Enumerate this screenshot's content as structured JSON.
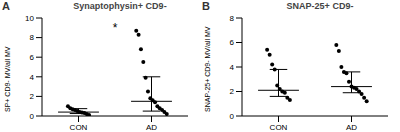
{
  "chart_data": [
    {
      "type": "scatter",
      "panel": "A",
      "title": "Synaptophysin+ CD9-",
      "y_label": "SP+ CD9- MV/all MV",
      "categories": [
        "CON",
        "AD"
      ],
      "values": [
        [
          1.0,
          0.8,
          0.7,
          0.6,
          0.5,
          0.4,
          0.35,
          0.3,
          0.2,
          0.1
        ],
        [
          8.7,
          8.3,
          6.8,
          5.5,
          3.9,
          2.5,
          1.8,
          1.6,
          1.4,
          1.0,
          0.8,
          0.6,
          0.4,
          0.2
        ]
      ],
      "median": [
        0.4,
        1.5
      ],
      "q1": [
        0.25,
        0.5
      ],
      "q3": [
        0.75,
        4.0
      ],
      "color": "#000000",
      "marker": "circle",
      "ylim": [
        0,
        10
      ],
      "yticks": [
        0,
        2,
        4,
        6,
        8,
        10
      ],
      "annotations": [
        "*"
      ]
    },
    {
      "type": "scatter",
      "panel": "B",
      "title": "SNAP-25+ CD9-",
      "y_label": "SNAP-25+ CD9- MV/all MV",
      "categories": [
        "CON",
        "AD"
      ],
      "values": [
        [
          5.4,
          5.0,
          4.2,
          3.8,
          2.5,
          2.2,
          2.0,
          1.9,
          1.5,
          1.3
        ],
        [
          5.8,
          5.3,
          4.0,
          3.6,
          3.5,
          2.8,
          2.4,
          2.3,
          2.2,
          2.0,
          1.8,
          1.5,
          1.2
        ]
      ],
      "median": [
        2.1,
        2.4
      ],
      "q1": [
        1.6,
        1.9
      ],
      "q3": [
        3.8,
        3.6
      ],
      "color": "#000000",
      "marker": "circle",
      "ylim": [
        0,
        8
      ],
      "yticks": [
        0,
        2,
        4,
        6,
        8
      ]
    }
  ]
}
